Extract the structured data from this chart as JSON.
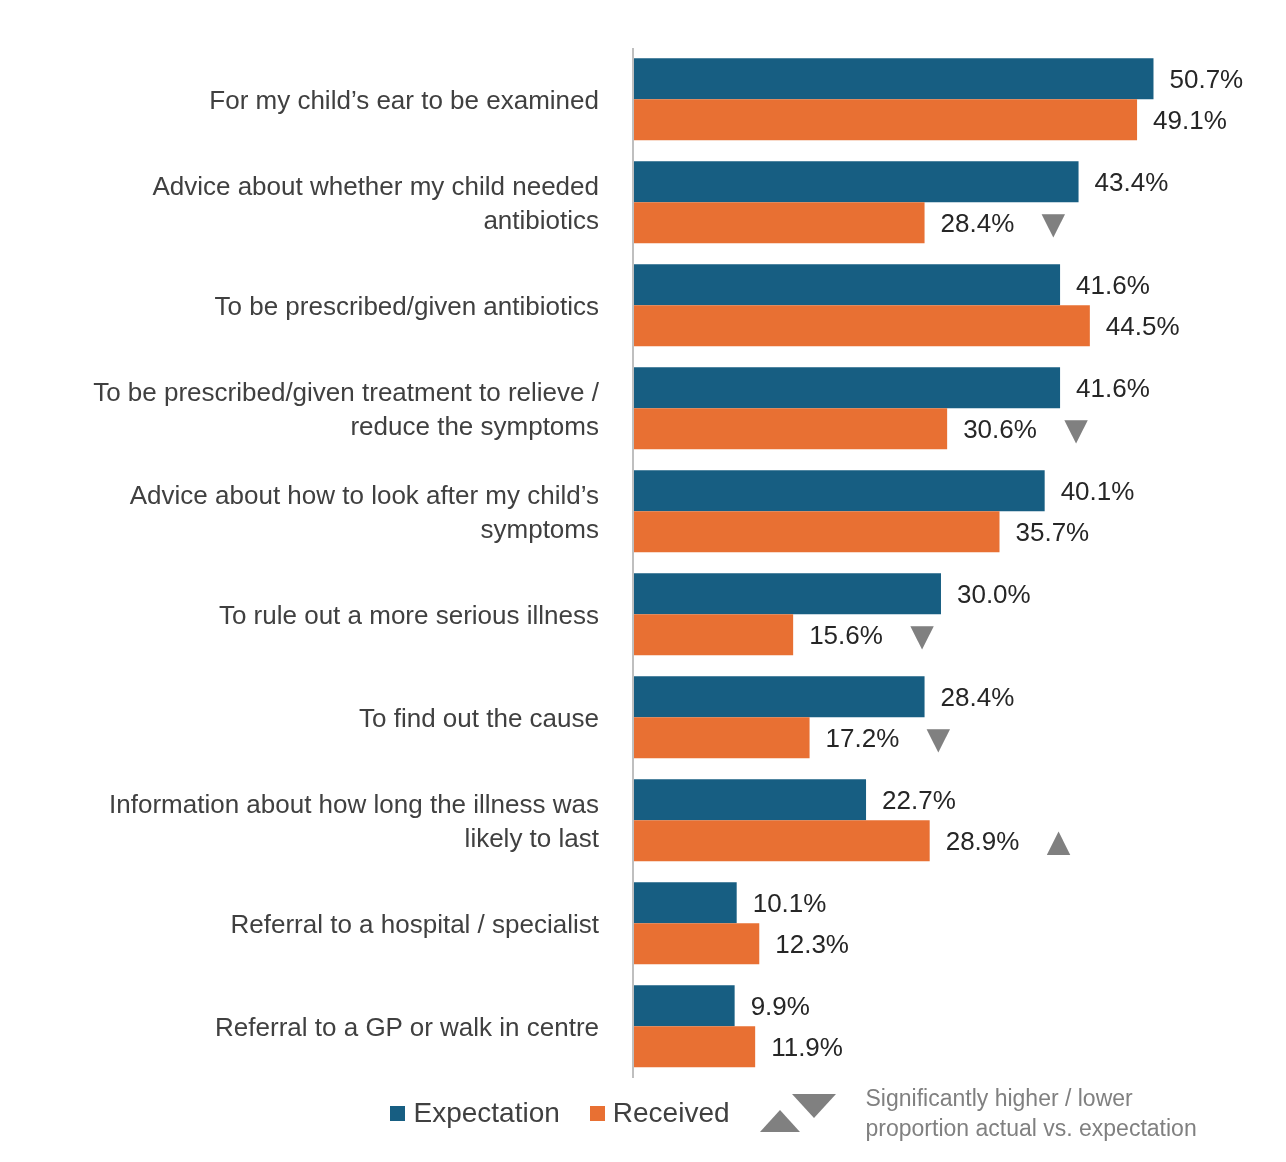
{
  "chart_data": {
    "type": "bar",
    "orientation": "horizontal",
    "categories": [
      "For my child’s ear to be examined",
      "Advice about whether my child needed antibiotics",
      "To be prescribed/given antibiotics",
      "To be prescribed/given treatment to relieve / reduce the symptoms",
      "Advice about how to look after my child’s symptoms",
      "To rule out a more serious illness",
      "To find out the cause",
      "Information about how long the illness was likely to last",
      "Referral to a hospital / specialist",
      "Referral to a GP or walk in centre"
    ],
    "series": [
      {
        "name": "Expectation",
        "color": "#175e82",
        "values": [
          50.7,
          43.4,
          41.6,
          41.6,
          40.1,
          30.0,
          28.4,
          22.7,
          10.1,
          9.9
        ],
        "value_labels": [
          "50.7%",
          "43.4%",
          "41.6%",
          "41.6%",
          "40.1%",
          "30.0%",
          "28.4%",
          "22.7%",
          "10.1%",
          "9.9%"
        ]
      },
      {
        "name": "Received",
        "color": "#e87033",
        "values": [
          49.1,
          28.4,
          44.5,
          30.6,
          35.7,
          15.6,
          17.2,
          28.9,
          12.3,
          11.9
        ],
        "value_labels": [
          "49.1%",
          "28.4%",
          "44.5%",
          "30.6%",
          "35.7%",
          "15.6%",
          "17.2%",
          "28.9%",
          "12.3%",
          "11.9%"
        ]
      }
    ],
    "annotations": [
      {
        "text": "▼",
        "x": 28.4,
        "y": "Advice about whether my child needed antibiotics"
      },
      {
        "text": "▼",
        "x": 30.6,
        "y": "To be prescribed/given treatment to relieve / reduce the symptoms"
      },
      {
        "text": "▼",
        "x": 15.6,
        "y": "To rule out a more serious illness"
      },
      {
        "text": "▼",
        "x": 17.2,
        "y": "To find out the cause"
      },
      {
        "text": "▲",
        "x": 28.9,
        "y": "Information about how long the illness was likely to last"
      },
      "Significantly higher / lower proportion actual vs. expectation"
    ],
    "legend": "bottom"
  }
}
